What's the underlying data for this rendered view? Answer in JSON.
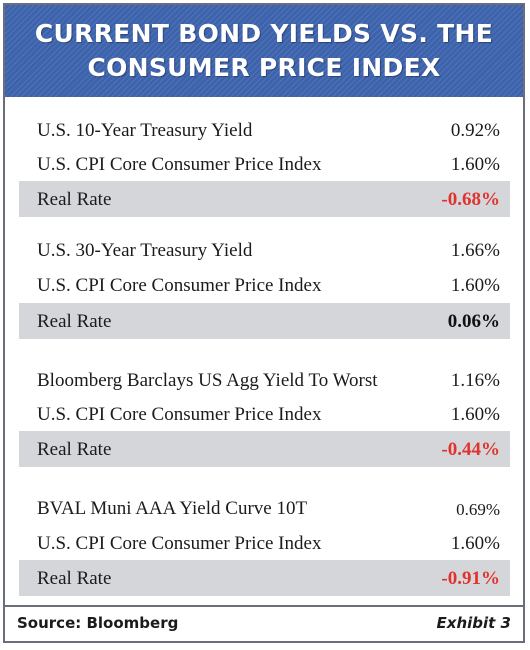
{
  "title": {
    "line1": "CURRENT BOND YIELDS VS. THE",
    "line2": "CONSUMER PRICE INDEX"
  },
  "colors": {
    "header_blue": "#3d63ad",
    "negative_red": "#e0332d",
    "band_gray": "#d4d6da"
  },
  "groups": [
    {
      "yield_label": "U.S. 10-Year Treasury Yield",
      "yield_value": "0.92%",
      "cpi_label": "U.S. CPI Core Consumer Price Index",
      "cpi_value": "1.60%",
      "real_label": "Real Rate",
      "real_value": "-0.68%"
    },
    {
      "yield_label": "U.S. 30-Year Treasury Yield",
      "yield_value": "1.66%",
      "cpi_label": "U.S. CPI Core Consumer Price Index",
      "cpi_value": "1.60%",
      "real_label": "Real Rate",
      "real_value": "0.06%"
    },
    {
      "yield_label": "Bloomberg Barclays US Agg Yield To Worst",
      "yield_value": "1.16%",
      "cpi_label": "U.S. CPI Core Consumer Price Index",
      "cpi_value": "1.60%",
      "real_label": "Real Rate",
      "real_value": "-0.44%"
    },
    {
      "yield_label": "BVAL Muni AAA Yield Curve 10T",
      "yield_value": "0.69%",
      "cpi_label": "U.S. CPI Core Consumer Price Index",
      "cpi_value": "1.60%",
      "real_label": "Real Rate",
      "real_value": "-0.91%"
    }
  ],
  "footer": {
    "source": "Source: Bloomberg",
    "exhibit": "Exhibit 3"
  }
}
